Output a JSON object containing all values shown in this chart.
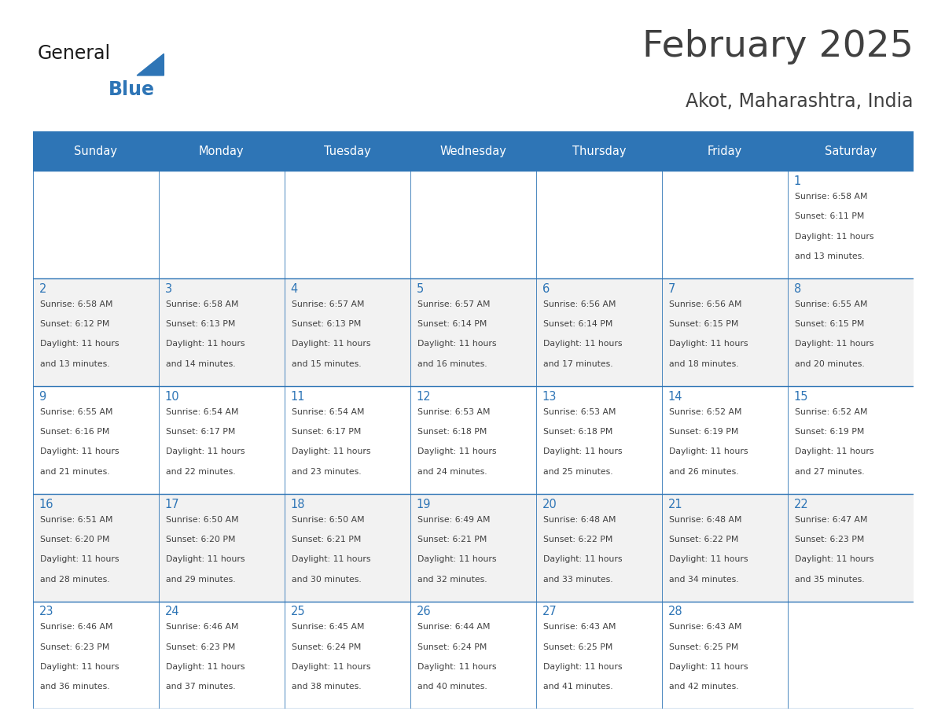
{
  "title": "February 2025",
  "subtitle": "Akot, Maharashtra, India",
  "header_color": "#2E75B6",
  "header_text_color": "#FFFFFF",
  "day_names": [
    "Sunday",
    "Monday",
    "Tuesday",
    "Wednesday",
    "Thursday",
    "Friday",
    "Saturday"
  ],
  "background_color": "#FFFFFF",
  "cell_bg_even": "#F2F2F2",
  "grid_color": "#2E75B6",
  "text_color": "#404040",
  "number_color": "#2E75B6",
  "logo_general_color": "#1a1a1a",
  "logo_blue_color": "#2E75B6",
  "calendar_data": [
    [
      null,
      null,
      null,
      null,
      null,
      null,
      {
        "day": 1,
        "sunrise": "6:58 AM",
        "sunset": "6:11 PM",
        "daylight_hours": 11,
        "daylight_minutes": 13
      }
    ],
    [
      {
        "day": 2,
        "sunrise": "6:58 AM",
        "sunset": "6:12 PM",
        "daylight_hours": 11,
        "daylight_minutes": 13
      },
      {
        "day": 3,
        "sunrise": "6:58 AM",
        "sunset": "6:13 PM",
        "daylight_hours": 11,
        "daylight_minutes": 14
      },
      {
        "day": 4,
        "sunrise": "6:57 AM",
        "sunset": "6:13 PM",
        "daylight_hours": 11,
        "daylight_minutes": 15
      },
      {
        "day": 5,
        "sunrise": "6:57 AM",
        "sunset": "6:14 PM",
        "daylight_hours": 11,
        "daylight_minutes": 16
      },
      {
        "day": 6,
        "sunrise": "6:56 AM",
        "sunset": "6:14 PM",
        "daylight_hours": 11,
        "daylight_minutes": 17
      },
      {
        "day": 7,
        "sunrise": "6:56 AM",
        "sunset": "6:15 PM",
        "daylight_hours": 11,
        "daylight_minutes": 18
      },
      {
        "day": 8,
        "sunrise": "6:55 AM",
        "sunset": "6:15 PM",
        "daylight_hours": 11,
        "daylight_minutes": 20
      }
    ],
    [
      {
        "day": 9,
        "sunrise": "6:55 AM",
        "sunset": "6:16 PM",
        "daylight_hours": 11,
        "daylight_minutes": 21
      },
      {
        "day": 10,
        "sunrise": "6:54 AM",
        "sunset": "6:17 PM",
        "daylight_hours": 11,
        "daylight_minutes": 22
      },
      {
        "day": 11,
        "sunrise": "6:54 AM",
        "sunset": "6:17 PM",
        "daylight_hours": 11,
        "daylight_minutes": 23
      },
      {
        "day": 12,
        "sunrise": "6:53 AM",
        "sunset": "6:18 PM",
        "daylight_hours": 11,
        "daylight_minutes": 24
      },
      {
        "day": 13,
        "sunrise": "6:53 AM",
        "sunset": "6:18 PM",
        "daylight_hours": 11,
        "daylight_minutes": 25
      },
      {
        "day": 14,
        "sunrise": "6:52 AM",
        "sunset": "6:19 PM",
        "daylight_hours": 11,
        "daylight_minutes": 26
      },
      {
        "day": 15,
        "sunrise": "6:52 AM",
        "sunset": "6:19 PM",
        "daylight_hours": 11,
        "daylight_minutes": 27
      }
    ],
    [
      {
        "day": 16,
        "sunrise": "6:51 AM",
        "sunset": "6:20 PM",
        "daylight_hours": 11,
        "daylight_minutes": 28
      },
      {
        "day": 17,
        "sunrise": "6:50 AM",
        "sunset": "6:20 PM",
        "daylight_hours": 11,
        "daylight_minutes": 29
      },
      {
        "day": 18,
        "sunrise": "6:50 AM",
        "sunset": "6:21 PM",
        "daylight_hours": 11,
        "daylight_minutes": 30
      },
      {
        "day": 19,
        "sunrise": "6:49 AM",
        "sunset": "6:21 PM",
        "daylight_hours": 11,
        "daylight_minutes": 32
      },
      {
        "day": 20,
        "sunrise": "6:48 AM",
        "sunset": "6:22 PM",
        "daylight_hours": 11,
        "daylight_minutes": 33
      },
      {
        "day": 21,
        "sunrise": "6:48 AM",
        "sunset": "6:22 PM",
        "daylight_hours": 11,
        "daylight_minutes": 34
      },
      {
        "day": 22,
        "sunrise": "6:47 AM",
        "sunset": "6:23 PM",
        "daylight_hours": 11,
        "daylight_minutes": 35
      }
    ],
    [
      {
        "day": 23,
        "sunrise": "6:46 AM",
        "sunset": "6:23 PM",
        "daylight_hours": 11,
        "daylight_minutes": 36
      },
      {
        "day": 24,
        "sunrise": "6:46 AM",
        "sunset": "6:23 PM",
        "daylight_hours": 11,
        "daylight_minutes": 37
      },
      {
        "day": 25,
        "sunrise": "6:45 AM",
        "sunset": "6:24 PM",
        "daylight_hours": 11,
        "daylight_minutes": 38
      },
      {
        "day": 26,
        "sunrise": "6:44 AM",
        "sunset": "6:24 PM",
        "daylight_hours": 11,
        "daylight_minutes": 40
      },
      {
        "day": 27,
        "sunrise": "6:43 AM",
        "sunset": "6:25 PM",
        "daylight_hours": 11,
        "daylight_minutes": 41
      },
      {
        "day": 28,
        "sunrise": "6:43 AM",
        "sunset": "6:25 PM",
        "daylight_hours": 11,
        "daylight_minutes": 42
      },
      null
    ]
  ]
}
